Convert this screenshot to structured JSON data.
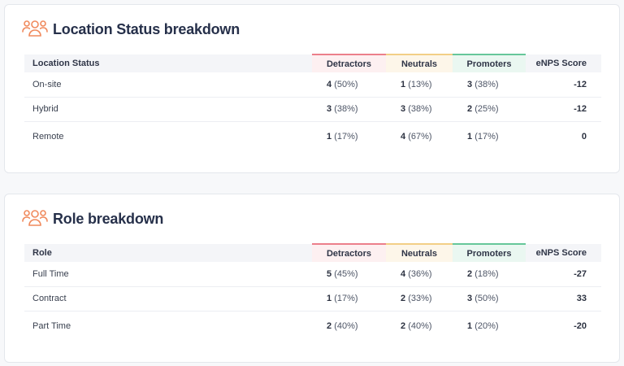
{
  "location": {
    "title": "Location Status breakdown",
    "icon": "people-group-icon",
    "columns": [
      "Location Status",
      "Detractors",
      "Neutrals",
      "Promoters",
      "eNPS Score"
    ],
    "rows": [
      {
        "label": "On-site",
        "det_n": "4",
        "det_p": "(50%)",
        "neu_n": "1",
        "neu_p": "(13%)",
        "pro_n": "3",
        "pro_p": "(38%)",
        "score": "-12"
      },
      {
        "label": "Hybrid",
        "det_n": "3",
        "det_p": "(38%)",
        "neu_n": "3",
        "neu_p": "(38%)",
        "pro_n": "2",
        "pro_p": "(25%)",
        "score": "-12"
      },
      {
        "label": "Remote",
        "det_n": "1",
        "det_p": "(17%)",
        "neu_n": "4",
        "neu_p": "(67%)",
        "pro_n": "1",
        "pro_p": "(17%)",
        "score": "0"
      }
    ]
  },
  "role": {
    "title": "Role breakdown",
    "icon": "people-group-icon",
    "columns": [
      "Role",
      "Detractors",
      "Neutrals",
      "Promoters",
      "eNPS Score"
    ],
    "rows": [
      {
        "label": "Full Time",
        "det_n": "5",
        "det_p": "(45%)",
        "neu_n": "4",
        "neu_p": "(36%)",
        "pro_n": "2",
        "pro_p": "(18%)",
        "score": "-27"
      },
      {
        "label": "Contract",
        "det_n": "1",
        "det_p": "(17%)",
        "neu_n": "2",
        "neu_p": "(33%)",
        "pro_n": "3",
        "pro_p": "(50%)",
        "score": "33"
      },
      {
        "label": "Part Time",
        "det_n": "2",
        "det_p": "(40%)",
        "neu_n": "2",
        "neu_p": "(40%)",
        "pro_n": "1",
        "pro_p": "(20%)",
        "score": "-20"
      }
    ]
  },
  "colors": {
    "accent_icon": "#f08a5d",
    "detractors": "#ec7f8b",
    "neutrals": "#f2cf86",
    "promoters": "#66c79a"
  }
}
